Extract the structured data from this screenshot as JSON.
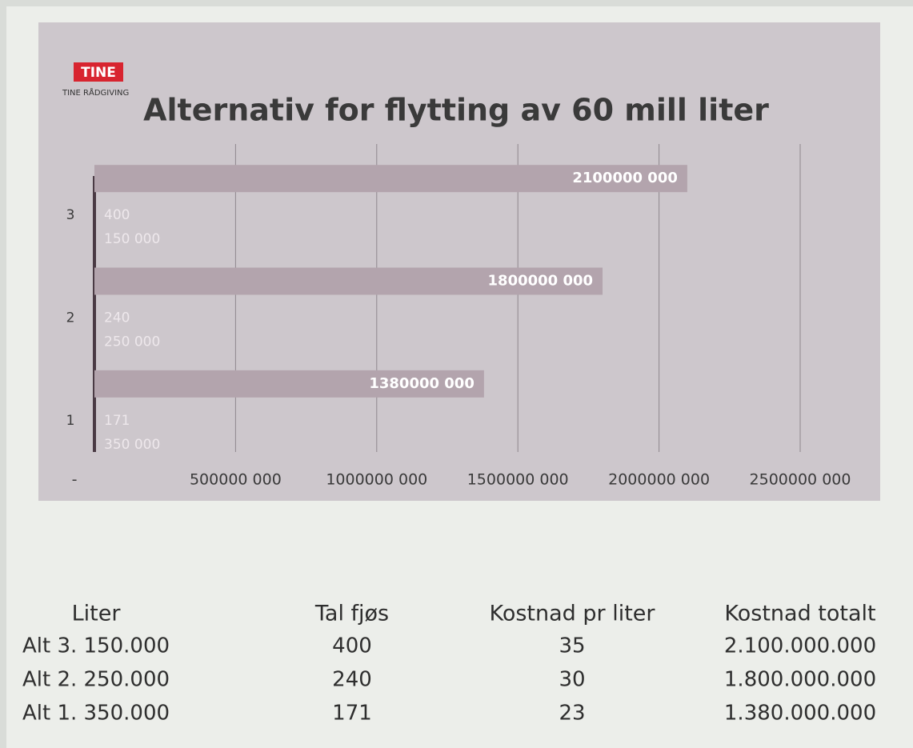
{
  "logo": {
    "brand": "TINE",
    "subtitle": "TINE RÅDGIVING"
  },
  "chart_data": {
    "type": "bar",
    "orientation": "horizontal",
    "title": "Alternativ for flytting av 60 mill liter",
    "categories": [
      "1",
      "2",
      "3"
    ],
    "values": [
      1380000000,
      1800000000,
      2100000000
    ],
    "value_labels": [
      "1380000 000",
      "1800000 000",
      "2100000 000"
    ],
    "annotations": [
      [
        "171",
        "350 000"
      ],
      [
        "240",
        "250 000"
      ],
      [
        "400",
        "150 000"
      ]
    ],
    "color": "#b3a4ad",
    "xlim": [
      0,
      2500000000
    ],
    "xticks": [
      {
        "value": 0,
        "label": "-"
      },
      {
        "value": 500000000,
        "label": "500000 000"
      },
      {
        "value": 1000000000,
        "label": "1000000 000"
      },
      {
        "value": 1500000000,
        "label": "1500000 000"
      },
      {
        "value": 2000000000,
        "label": "2000000 000"
      },
      {
        "value": 2500000000,
        "label": "2500000 000"
      }
    ],
    "grid": true
  },
  "table": {
    "header": [
      "Liter",
      "Tal fjøs",
      "Kostnad pr liter",
      "Kostnad totalt"
    ],
    "rows": [
      [
        "Alt 3. 150.000",
        "400",
        "35",
        "2.100.000.000"
      ],
      [
        "Alt 2. 250.000",
        "240",
        "30",
        "1.800.000.000"
      ],
      [
        "Alt 1. 350.000",
        "171",
        "23",
        "1.380.000.000"
      ]
    ]
  }
}
